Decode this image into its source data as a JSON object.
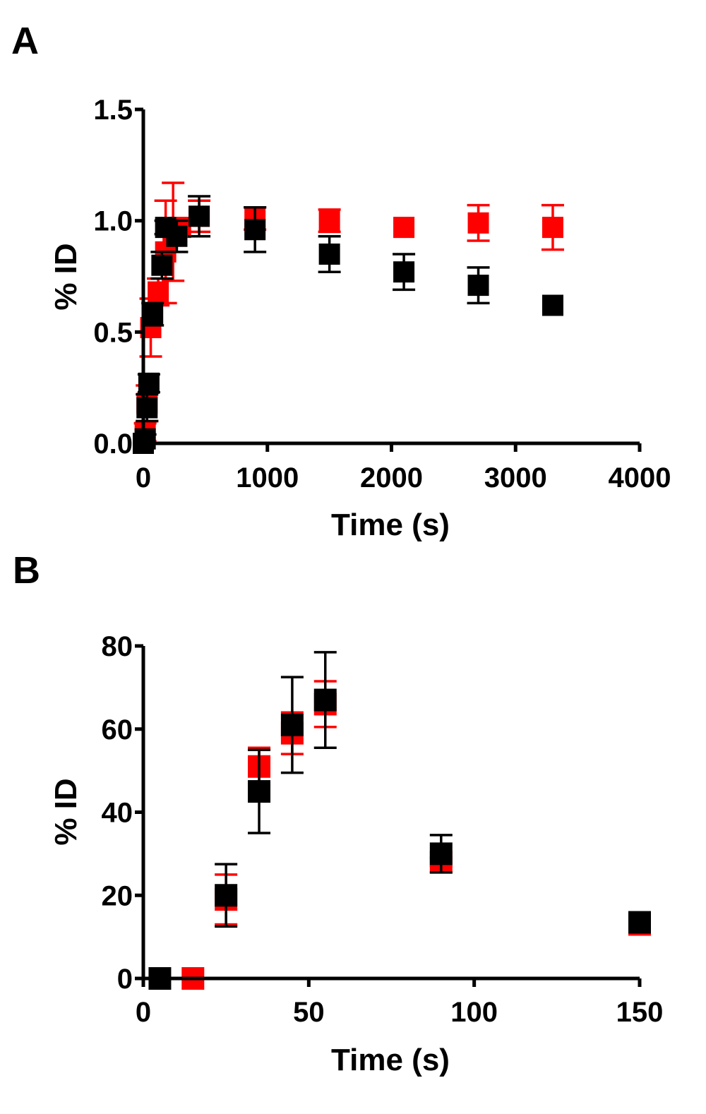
{
  "chart_data": [
    {
      "panel": "A",
      "type": "scatter",
      "xlabel": "Time (s)",
      "ylabel": "% ID",
      "xlim": [
        0,
        4000
      ],
      "ylim": [
        0,
        1.5
      ],
      "xticks": [
        0,
        1000,
        2000,
        3000,
        4000
      ],
      "yticks": [
        0.0,
        0.5,
        1.0,
        1.5
      ],
      "xtick_labels": [
        "0",
        "1000",
        "2000",
        "3000",
        "4000"
      ],
      "ytick_labels": [
        "0.0",
        "0.5",
        "1.0",
        "1.5"
      ],
      "grid": false,
      "series": [
        {
          "color": "#ff0000",
          "points": [
            {
              "x": 0,
              "y": 0.0,
              "err": 0.0
            },
            {
              "x": 15,
              "y": 0.05,
              "err": 0.04
            },
            {
              "x": 30,
              "y": 0.18,
              "err": 0.08
            },
            {
              "x": 60,
              "y": 0.52,
              "err": 0.13
            },
            {
              "x": 120,
              "y": 0.68,
              "err": 0.06
            },
            {
              "x": 180,
              "y": 0.86,
              "err": 0.23
            },
            {
              "x": 240,
              "y": 0.95,
              "err": 0.22
            },
            {
              "x": 300,
              "y": 0.97,
              "err": 0.02
            },
            {
              "x": 450,
              "y": 1.02,
              "err": 0.07
            },
            {
              "x": 900,
              "y": 1.01,
              "err": 0.05
            },
            {
              "x": 1500,
              "y": 1.0,
              "err": 0.05
            },
            {
              "x": 2100,
              "y": 0.97,
              "err": 0.0
            },
            {
              "x": 2700,
              "y": 0.99,
              "err": 0.08
            },
            {
              "x": 3300,
              "y": 0.97,
              "err": 0.1
            }
          ]
        },
        {
          "color": "#000000",
          "points": [
            {
              "x": 0,
              "y": 0.0,
              "err": 0.0
            },
            {
              "x": 15,
              "y": 0.02,
              "err": 0.02
            },
            {
              "x": 30,
              "y": 0.16,
              "err": 0.06
            },
            {
              "x": 45,
              "y": 0.27,
              "err": 0.04
            },
            {
              "x": 75,
              "y": 0.58,
              "err": 0.05
            },
            {
              "x": 150,
              "y": 0.8,
              "err": 0.06
            },
            {
              "x": 180,
              "y": 0.97,
              "err": 0.03
            },
            {
              "x": 270,
              "y": 0.93,
              "err": 0.07
            },
            {
              "x": 450,
              "y": 1.02,
              "err": 0.09
            },
            {
              "x": 900,
              "y": 0.96,
              "err": 0.1
            },
            {
              "x": 1500,
              "y": 0.85,
              "err": 0.08
            },
            {
              "x": 2100,
              "y": 0.77,
              "err": 0.08
            },
            {
              "x": 2700,
              "y": 0.71,
              "err": 0.08
            },
            {
              "x": 3300,
              "y": 0.62,
              "err": 0.0
            }
          ]
        }
      ]
    },
    {
      "panel": "B",
      "type": "scatter",
      "xlabel": "Time (s)",
      "ylabel": "% ID",
      "xlim": [
        0,
        150
      ],
      "ylim": [
        0,
        80
      ],
      "xticks": [
        0,
        50,
        100,
        150
      ],
      "yticks": [
        0,
        20,
        40,
        60,
        80
      ],
      "xtick_labels": [
        "0",
        "50",
        "100",
        "150"
      ],
      "ytick_labels": [
        "0",
        "20",
        "40",
        "60",
        "80"
      ],
      "grid": false,
      "series": [
        {
          "color": "#ff0000",
          "points": [
            {
              "x": 15,
              "y": 0,
              "err": 0
            },
            {
              "x": 25,
              "y": 19,
              "err": 6
            },
            {
              "x": 35,
              "y": 51,
              "err": 4.5
            },
            {
              "x": 45,
              "y": 59,
              "err": 5
            },
            {
              "x": 55,
              "y": 66,
              "err": 5.5
            },
            {
              "x": 90,
              "y": 28,
              "err": 1
            },
            {
              "x": 150,
              "y": 13,
              "err": 1
            }
          ]
        },
        {
          "color": "#000000",
          "points": [
            {
              "x": 5,
              "y": 0,
              "err": 0
            },
            {
              "x": 25,
              "y": 20,
              "err": 7.5
            },
            {
              "x": 35,
              "y": 45,
              "err": 10
            },
            {
              "x": 45,
              "y": 61,
              "err": 11.5
            },
            {
              "x": 55,
              "y": 67,
              "err": 11.5
            },
            {
              "x": 90,
              "y": 30,
              "err": 4.5
            },
            {
              "x": 150,
              "y": 13.5,
              "err": 0
            }
          ]
        }
      ]
    }
  ]
}
